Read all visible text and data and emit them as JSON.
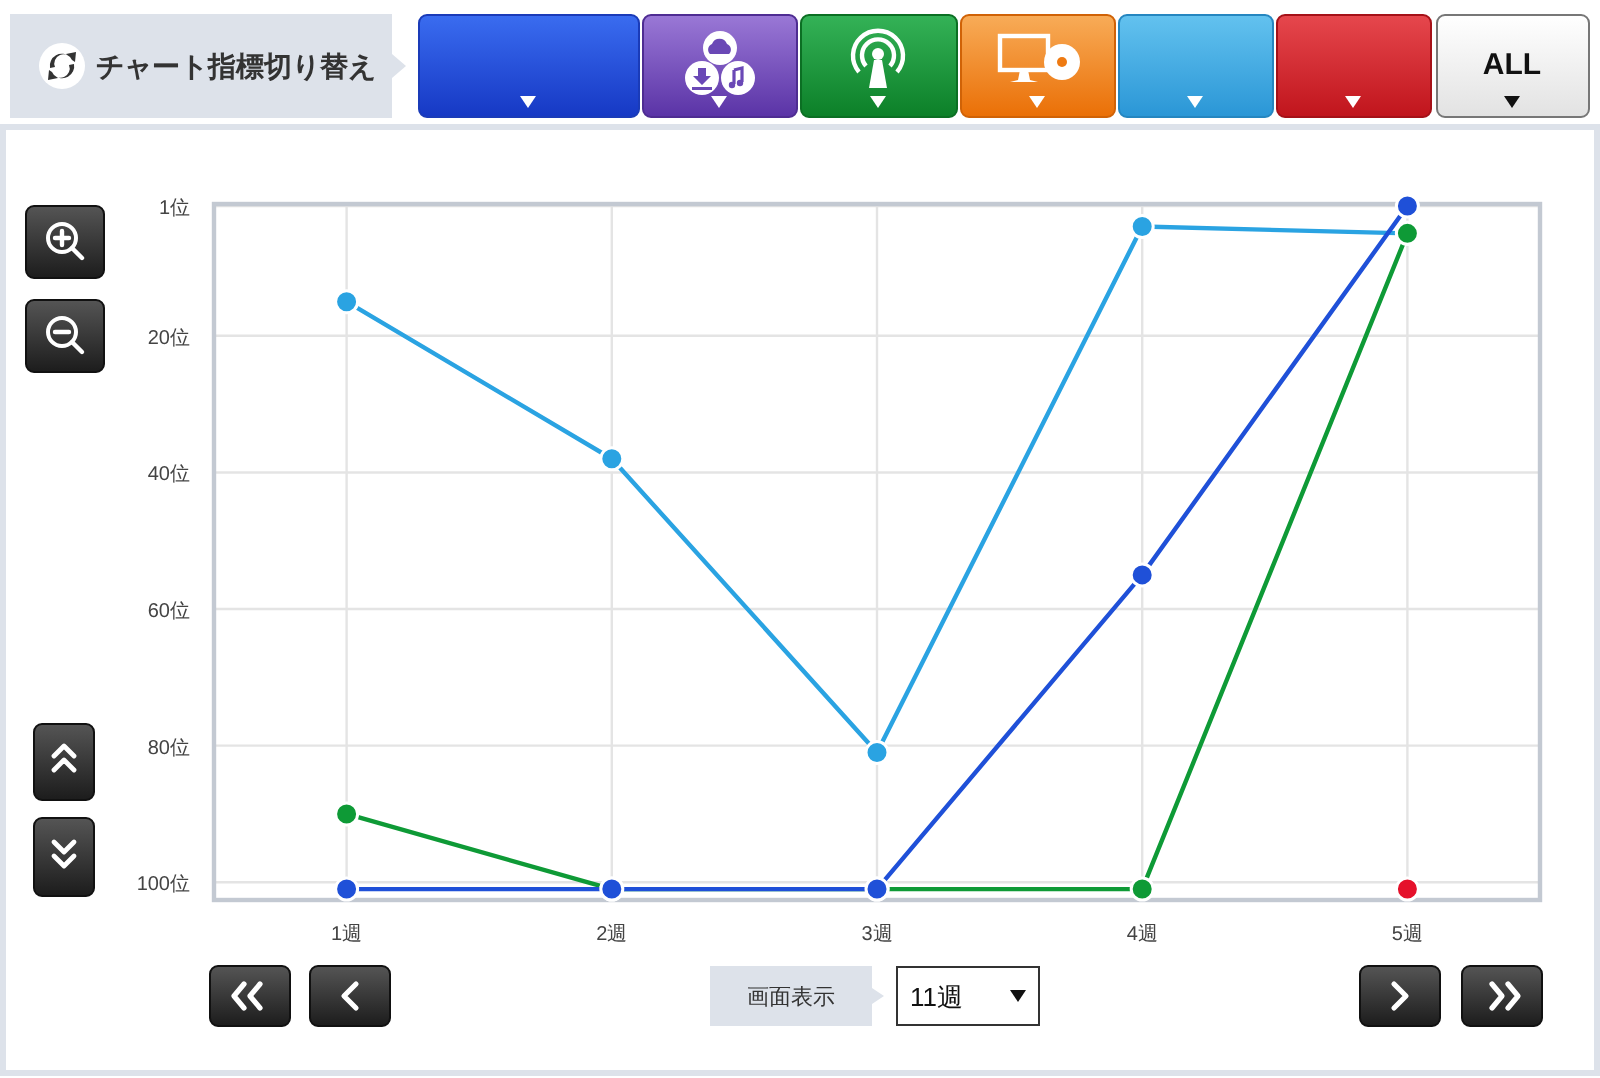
{
  "chart_data": {
    "type": "line",
    "categories": [
      "1週",
      "2週",
      "3週",
      "4週",
      "5週"
    ],
    "series": [
      {
        "color": "#2aa3e2",
        "values": [
          15,
          38,
          81,
          4,
          5
        ]
      },
      {
        "color": "#0e9a36",
        "values": [
          90,
          101,
          101,
          101,
          5
        ]
      },
      {
        "color": "#1f50d8",
        "values": [
          101,
          101,
          101,
          55,
          1
        ]
      },
      {
        "color": "#e5112b",
        "values": [
          null,
          null,
          null,
          null,
          101
        ]
      }
    ],
    "ylim": [
      102.6,
      0.7
    ],
    "yticks": [
      {
        "value": 1,
        "label": "1位"
      },
      {
        "value": 20,
        "label": "20位"
      },
      {
        "value": 40,
        "label": "40位"
      },
      {
        "value": 60,
        "label": "60位"
      },
      {
        "value": 80,
        "label": "80位"
      },
      {
        "value": 100,
        "label": "100位"
      }
    ],
    "grid": true,
    "marker": "circle",
    "line_style": "solid",
    "annotations": [
      "チャート指標切り替え",
      "ALL",
      "画面表示",
      "11週"
    ]
  }
}
